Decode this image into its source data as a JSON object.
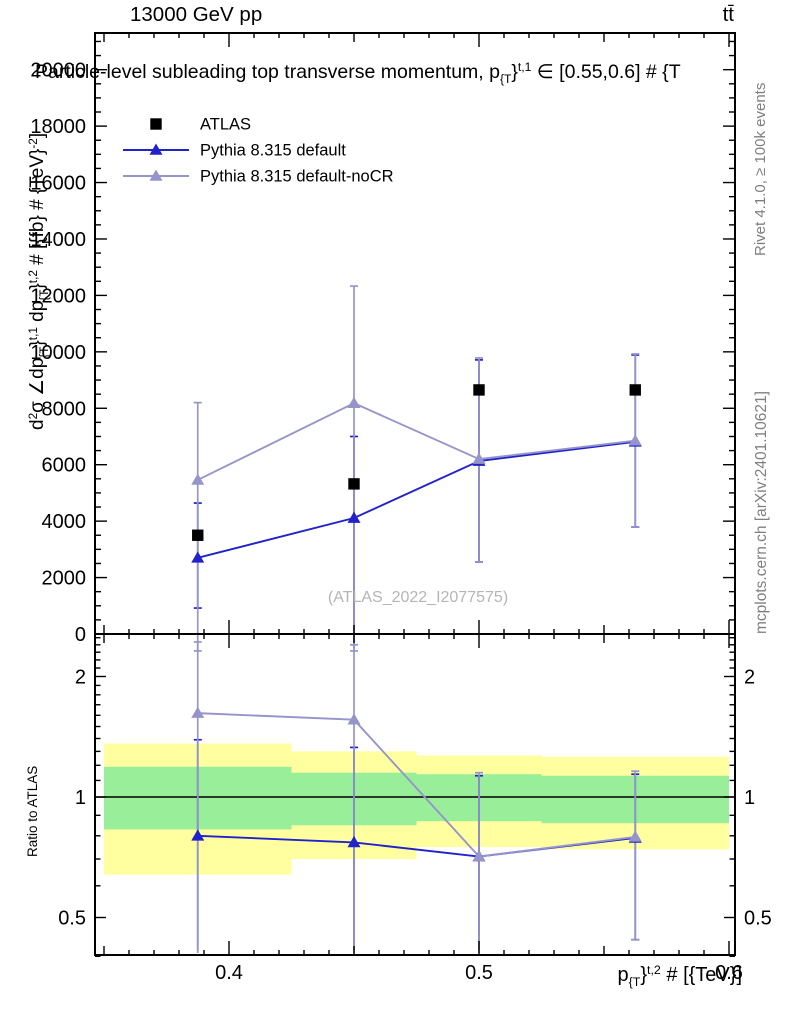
{
  "header": {
    "beam": "13000 GeV pp",
    "process": "tt̄"
  },
  "plot_title": {
    "segments": [
      {
        "t": "Particle-level subleading top transverse momentum, p"
      },
      {
        "t": "{T",
        "sub": true
      },
      {
        "t": "}"
      },
      {
        "t": "t,1",
        "sup": true
      },
      {
        "t": " ∈ [0.55,0.6] # {T"
      }
    ]
  },
  "side_notes": {
    "rivet": "Rivet 4.1.0, ≥ 100k events",
    "mcplots": "mcplots.cern.ch [arXiv:2401.10621]"
  },
  "watermark": "(ATLAS_2022_I2077575)",
  "legend": [
    {
      "label": "ATLAS",
      "marker": "square",
      "color": "#000000",
      "line": false
    },
    {
      "label": "Pythia 8.315 default",
      "marker": "triangle",
      "color": "#2222cc",
      "line": true
    },
    {
      "label": "Pythia 8.315 default-noCR",
      "marker": "triangle",
      "color": "#9595cc",
      "line": true
    }
  ],
  "colors": {
    "atlas": "#000000",
    "pythia_default": "#2222cc",
    "pythia_nocr": "#9595cc",
    "band_yellow": "#ffffa0",
    "band_green": "#99ee99",
    "credits_gray": "#7f7f7f",
    "watermark_gray": "#b5b5b5"
  },
  "chart_data": {
    "type": "line",
    "x": [
      0.3875,
      0.45,
      0.5,
      0.5625
    ],
    "xlim": [
      0.3464,
      0.6024
    ],
    "xticks_labeled": [
      0.4,
      0.5,
      0.6
    ],
    "xlabel_segments": [
      {
        "t": "p"
      },
      {
        "t": "{T",
        "sub": true
      },
      {
        "t": "}"
      },
      {
        "t": "t,2",
        "sup": true
      },
      {
        "t": " # [{TeV}]"
      }
    ],
    "main_panel": {
      "ylabel_segments": [
        {
          "t": "d"
        },
        {
          "t": "2",
          "sup": true
        },
        {
          "t": "σ ∠dp"
        },
        {
          "t": "{T",
          "sub": true
        },
        {
          "t": "}"
        },
        {
          "t": "t,1",
          "sup": true
        },
        {
          "t": " dp"
        },
        {
          "t": "{T",
          "sub": true
        },
        {
          "t": "}"
        },
        {
          "t": "t,2",
          "sup": true
        },
        {
          "t": " # [{fb} # {TeV}",
          "": ""
        },
        {
          "t": "-2",
          "sup": true
        },
        {
          "t": "]"
        }
      ],
      "ylim": [
        0,
        21300
      ],
      "ytick_labels": [
        0,
        2000,
        4000,
        6000,
        8000,
        10000,
        12000,
        14000,
        16000,
        18000,
        20000
      ],
      "ytick_major_step": 2000,
      "ytick_minor_step": 500,
      "series": [
        {
          "name": "ATLAS",
          "color": "#000000",
          "marker": "square",
          "line": false,
          "values": [
            3500,
            5320,
            8650,
            8650
          ]
        },
        {
          "name": "Pythia 8.315 default",
          "color": "#2222cc",
          "marker": "triangle",
          "line": true,
          "values": [
            2700,
            4110,
            6130,
            6810
          ],
          "err_hi": [
            4640,
            7000,
            9715,
            9890
          ],
          "err_lo": [
            920,
            -600,
            2550,
            3790
          ]
        },
        {
          "name": "Pythia 8.315 default-noCR",
          "color": "#9595cc",
          "marker": "triangle",
          "line": true,
          "values": [
            5460,
            8180,
            6200,
            6850
          ],
          "err_hi": [
            8200,
            12330,
            9785,
            9925
          ],
          "err_lo": [
            -600,
            -600,
            2550,
            3790
          ]
        }
      ]
    },
    "ratio_panel": {
      "ylabel": "Ratio to ATLAS",
      "scale": "log",
      "ylim": [
        0.403,
        2.554
      ],
      "yticks_labeled": [
        0.5,
        1,
        2
      ],
      "ref_line": 1.0,
      "bands": [
        {
          "x0": 0.35,
          "x1": 0.425,
          "yellow": [
            0.64,
            1.36
          ],
          "green": [
            0.83,
            1.19
          ]
        },
        {
          "x0": 0.425,
          "x1": 0.475,
          "yellow": [
            0.7,
            1.3
          ],
          "green": [
            0.85,
            1.15
          ]
        },
        {
          "x0": 0.475,
          "x1": 0.525,
          "yellow": [
            0.75,
            1.27
          ],
          "green": [
            0.87,
            1.14
          ]
        },
        {
          "x0": 0.525,
          "x1": 0.6,
          "yellow": [
            0.74,
            1.26
          ],
          "green": [
            0.86,
            1.13
          ]
        }
      ],
      "series": [
        {
          "name": "Pythia 8.315 default",
          "color": "#2222cc",
          "marker": "triangle",
          "line": true,
          "values": [
            0.8,
            0.77,
            0.71,
            0.79
          ],
          "err_hi": [
            1.39,
            1.33,
            1.13,
            1.14
          ],
          "err_lo": [
            0.3,
            0.3,
            0.3,
            0.44
          ]
        },
        {
          "name": "Pythia 8.315 default-noCR",
          "color": "#9595cc",
          "marker": "triangle",
          "line": true,
          "values": [
            1.62,
            1.56,
            0.71,
            0.795
          ],
          "err_hi": [
            2.44,
            2.4,
            1.15,
            1.16
          ],
          "err_lo": [
            0.3,
            0.3,
            0.3,
            0.44
          ]
        }
      ]
    }
  }
}
